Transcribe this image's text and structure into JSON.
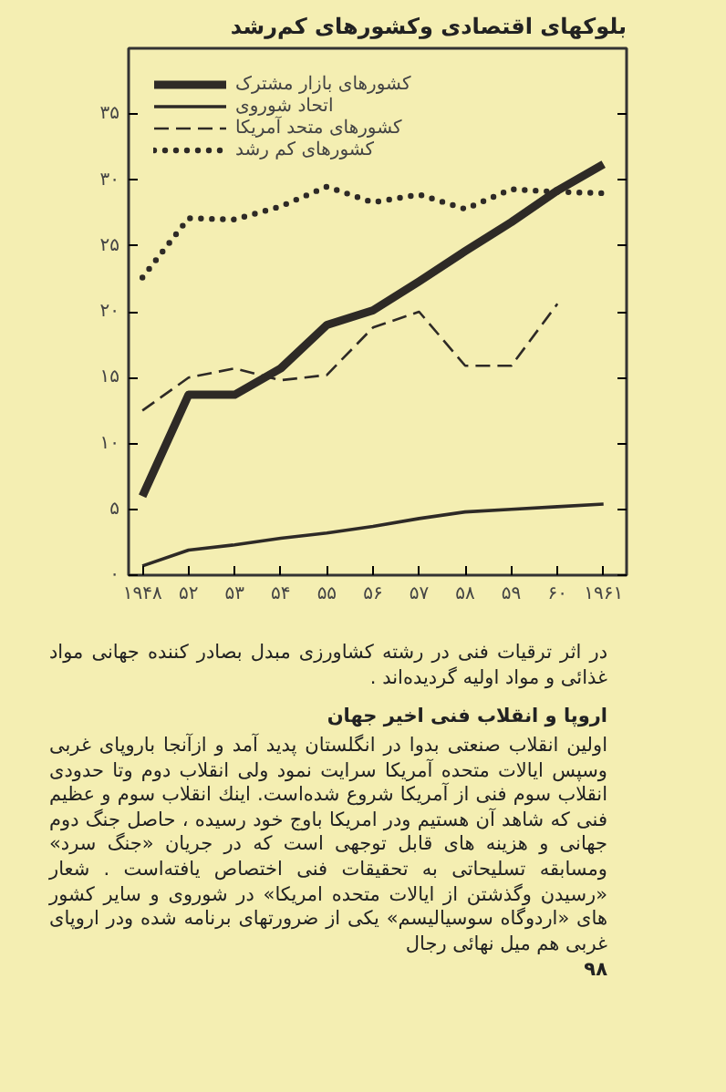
{
  "chart_data": {
    "type": "line",
    "title": "بلوکهای اقتصادی وکشورهای کم‌رشد",
    "categories": [
      "۱۹۴۸",
      "۵۲",
      "۵۳",
      "۵۴",
      "۵۵",
      "۵۶",
      "۵۷",
      "۵۸",
      "۵۹",
      "۶۰",
      "۱۹۶۱"
    ],
    "series": [
      {
        "name": "کشورهای بازار مشترک",
        "color": "#2e2a26",
        "line_style": "solid",
        "values": [
          6.0,
          13.7,
          13.7,
          15.7,
          19.0,
          20.1,
          22.3,
          24.6,
          26.8,
          29.2,
          31.2
        ]
      },
      {
        "name": "اتحاد شوروی",
        "color": "#2e2a26",
        "line_style": "solid",
        "values": [
          0.7,
          1.9,
          2.3,
          2.8,
          3.2,
          3.7,
          4.3,
          4.8,
          5.0,
          5.2,
          5.4
        ]
      },
      {
        "name": "کشورهای متحد آمریکا",
        "color": "#2e2a26",
        "line_style": "dashed",
        "values": [
          12.5,
          15.0,
          15.7,
          14.8,
          15.2,
          18.8,
          20.0,
          15.9,
          15.9,
          20.6,
          null
        ]
      },
      {
        "name": "کشورهای کم رشد",
        "color": "#2e2a26",
        "line_style": "dotted",
        "values": [
          22.6,
          27.1,
          27.0,
          28.0,
          29.5,
          28.3,
          28.9,
          27.8,
          29.3,
          29.1,
          29.0
        ]
      }
    ],
    "ylim": [
      0,
      40
    ],
    "yticks": [
      {
        "value": 0,
        "label": "۰"
      },
      {
        "value": 5,
        "label": "۵"
      },
      {
        "value": 10,
        "label": "۱۰"
      },
      {
        "value": 15,
        "label": "۱۵"
      },
      {
        "value": 20,
        "label": "۲۰"
      },
      {
        "value": 25,
        "label": "۲۵"
      },
      {
        "value": 30,
        "label": "۳۰"
      },
      {
        "value": 35,
        "label": "۳۵"
      }
    ],
    "grid": false,
    "legend": "top left",
    "marker": "none",
    "annotations": [
      "در اثر ترقیات فنی در رشته کشاورزی مبدل بصادر کننده جهانی مواد غذائی و مواد اولیه گردیده‌اند .",
      "اروپا و انقلاب فنی اخیر جهان",
      "اولین انقلاب صنعتی بدوا در انگلستان پدید آمد و ازآنجا باروپای غربی وسپس ایالات متحده آمریکا سرایت نمود ولی انقلاب دوم وتا حدودی انقلاب سوم فنی از آمریکا شروع شده‌است. اینك انقلاب سوم و عظیم فنی که شاهد آن هستیم ودر امریکا باوج خود رسیده ، حاصل جنگ دوم جهانی و هزینه های قابل توجهی است که در جریان «جنگ سرد» ومسابقه تسلیحاتی به تحقیقات فنی اختصاص یافته‌است . شعار «رسیدن وگذشتن از ایالات متحده امریکا» در شوروی و سایر کشور های «اردوگاه سوسیالیسم» یکی از ضرورتهای برنامه شده ودر اروپای غربی هم میل نهائی رجال",
      "۹۸"
    ]
  }
}
